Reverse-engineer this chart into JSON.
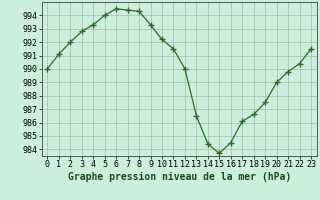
{
  "x": [
    0,
    1,
    2,
    3,
    4,
    5,
    6,
    7,
    8,
    9,
    10,
    11,
    12,
    13,
    14,
    15,
    16,
    17,
    18,
    19,
    20,
    21,
    22,
    23
  ],
  "y": [
    990.0,
    991.1,
    992.0,
    992.8,
    993.3,
    994.0,
    994.5,
    994.4,
    994.3,
    993.3,
    992.2,
    991.5,
    990.0,
    986.5,
    984.4,
    983.7,
    984.5,
    986.1,
    986.6,
    987.5,
    989.0,
    989.8,
    990.4,
    991.5
  ],
  "line_color": "#2d6a2d",
  "marker_color": "#2d6a2d",
  "bg_color": "#cceedd",
  "grid_color": "#aabbaa",
  "title": "Graphe pression niveau de la mer (hPa)",
  "ylim": [
    983.5,
    995.0
  ],
  "xlim": [
    -0.5,
    23.5
  ],
  "yticks": [
    984,
    985,
    986,
    987,
    988,
    989,
    990,
    991,
    992,
    993,
    994
  ],
  "xticks": [
    0,
    1,
    2,
    3,
    4,
    5,
    6,
    7,
    8,
    9,
    10,
    11,
    12,
    13,
    14,
    15,
    16,
    17,
    18,
    19,
    20,
    21,
    22,
    23
  ],
  "xtick_labels": [
    "0",
    "1",
    "2",
    "3",
    "4",
    "5",
    "6",
    "7",
    "8",
    "9",
    "10",
    "11",
    "12",
    "13",
    "14",
    "15",
    "16",
    "17",
    "18",
    "19",
    "20",
    "21",
    "22",
    "23"
  ],
  "title_fontsize": 7,
  "tick_fontsize": 6
}
